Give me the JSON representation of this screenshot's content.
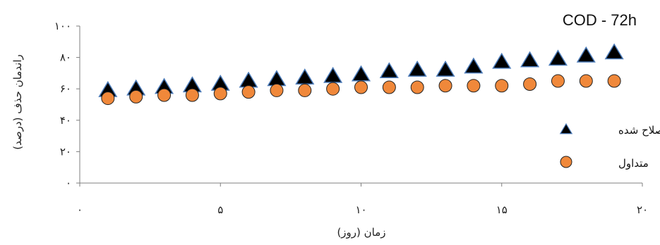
{
  "chart_data": {
    "type": "scatter",
    "title": "COD - 72h",
    "xlabel": "زمان (روز)",
    "ylabel": "راندمان حذف (درصد)",
    "xlim": [
      0,
      20
    ],
    "ylim": [
      0,
      100
    ],
    "xticks": [
      0,
      5,
      10,
      15,
      20
    ],
    "xtick_labels": [
      "۰",
      "۵",
      "۱۰",
      "۱۵",
      "۲۰"
    ],
    "yticks": [
      0,
      20,
      40,
      60,
      80,
      100
    ],
    "ytick_labels": [
      "۰",
      "۲۰",
      "۴۰",
      "۶۰",
      "۸۰",
      "۱۰۰"
    ],
    "grid": false,
    "legend_position": "right",
    "series": [
      {
        "name": "اصلاح شده",
        "marker": "triangle",
        "color": "#000000",
        "edge_color": "#4a7ab8",
        "x": [
          1,
          2,
          3,
          4,
          5,
          6,
          7,
          8,
          9,
          10,
          11,
          12,
          13,
          14,
          15,
          16,
          17,
          18,
          19
        ],
        "y": [
          59,
          60,
          61,
          62,
          63,
          65,
          66,
          67,
          68,
          69,
          71,
          72,
          72,
          74,
          77,
          78,
          79,
          81,
          83
        ]
      },
      {
        "name": "متداول",
        "marker": "circle",
        "color": "#f0883a",
        "edge_color": "#222222",
        "x": [
          1,
          2,
          3,
          4,
          5,
          6,
          7,
          8,
          9,
          10,
          11,
          12,
          13,
          14,
          15,
          16,
          17,
          18,
          19
        ],
        "y": [
          54,
          55,
          56,
          56,
          57,
          58,
          59,
          59,
          60,
          61,
          61,
          61,
          62,
          62,
          62,
          63,
          65,
          65,
          65
        ]
      }
    ]
  }
}
